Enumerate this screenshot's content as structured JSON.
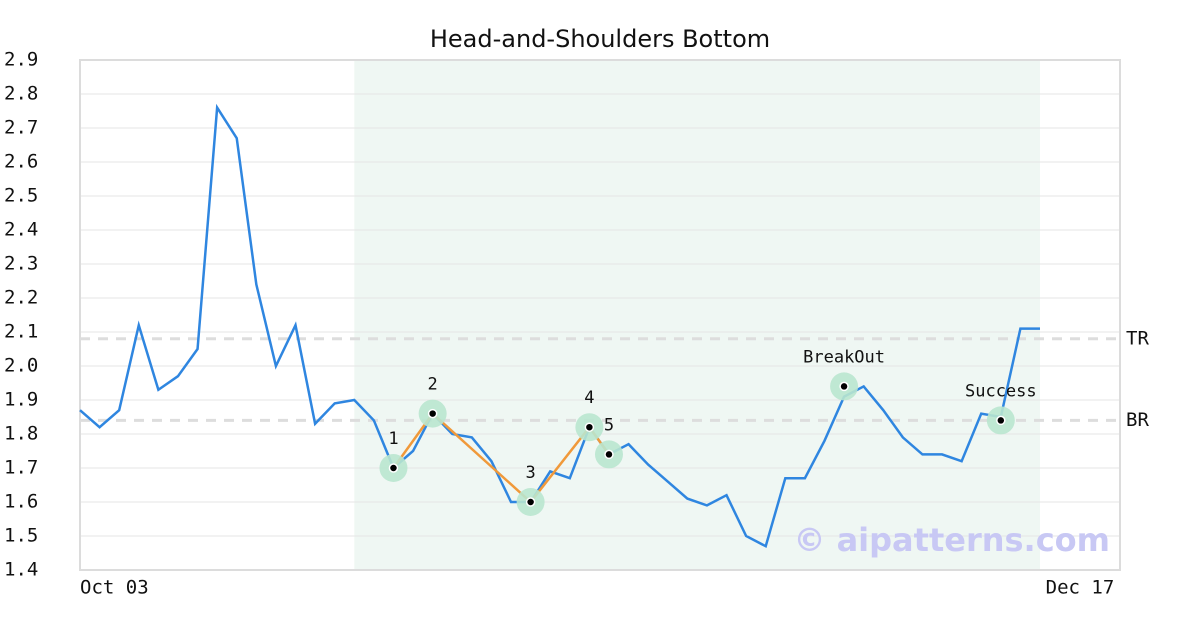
{
  "chart_data": {
    "type": "line",
    "title": "Head-and-Shoulders Bottom",
    "categories": [
      "Oct 03",
      null,
      null,
      null,
      null,
      null,
      null,
      null,
      null,
      null,
      null,
      null,
      null,
      null,
      null,
      null,
      null,
      null,
      null,
      null,
      null,
      null,
      null,
      null,
      null,
      null,
      null,
      null,
      null,
      null,
      null,
      null,
      null,
      null,
      null,
      null,
      null,
      null,
      null,
      null,
      null,
      null,
      null,
      null,
      null,
      null,
      null,
      null,
      null,
      "Dec 17"
    ],
    "series": [
      {
        "color": "#2f86e0",
        "values": [
          1.87,
          1.82,
          1.87,
          2.12,
          1.93,
          1.97,
          2.05,
          2.76,
          2.67,
          2.24,
          2.0,
          2.12,
          1.83,
          1.89,
          1.9,
          1.84,
          1.7,
          1.75,
          1.86,
          1.8,
          1.79,
          1.72,
          1.6,
          1.6,
          1.69,
          1.67,
          1.82,
          1.74,
          1.77,
          1.71,
          1.66,
          1.61,
          1.59,
          1.62,
          1.5,
          1.47,
          1.67,
          1.67,
          1.78,
          1.91,
          1.94,
          1.87,
          1.79,
          1.74,
          1.74,
          1.72,
          1.86,
          1.85,
          2.11,
          2.11
        ]
      }
    ],
    "ylim": [
      1.4,
      2.9
    ],
    "yticks": [
      1.4,
      1.5,
      1.6,
      1.7,
      1.8,
      1.9,
      {
        "value": 2,
        "label": "2.0"
      },
      2.1,
      2.2,
      2.3,
      2.4,
      2.5,
      2.6,
      2.7,
      2.8,
      2.9
    ],
    "grid": true,
    "shaded_span": {
      "from": 14,
      "to": 49,
      "color": "#eff7f3"
    },
    "levels": [
      {
        "label": "TR",
        "value": 2.08
      },
      {
        "label": "BR",
        "value": 1.84
      }
    ],
    "pattern_points": {
      "x": [
        16,
        18,
        23,
        26,
        27
      ],
      "values": [
        1.7,
        1.86,
        1.6,
        1.82,
        1.74
      ],
      "labels": [
        "1",
        "2",
        "3",
        "4",
        "5"
      ],
      "color": "#f0993a"
    },
    "events": [
      {
        "label": "BreakOut",
        "x": 39,
        "value": 1.94
      },
      {
        "label": "Success",
        "x": 47,
        "value": 1.84
      }
    ],
    "watermark": "© aipatterns.com"
  }
}
